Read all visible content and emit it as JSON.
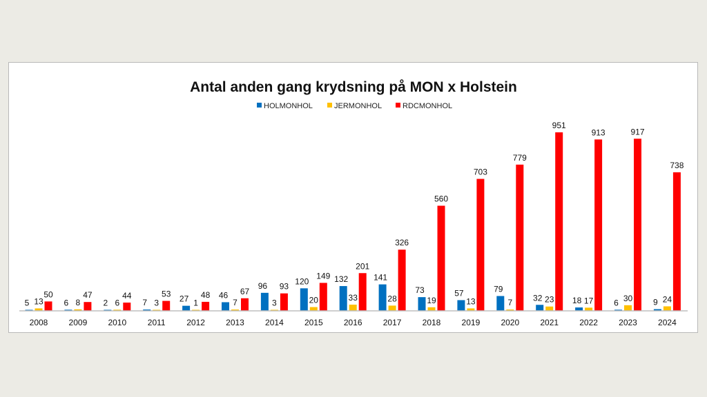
{
  "chart_data": {
    "type": "bar",
    "title": "Antal anden gang krydsning på MON x Holstein",
    "xlabel": "",
    "ylabel": "",
    "ylim": [
      0,
      951
    ],
    "grid": false,
    "legend_position": "top",
    "categories": [
      "2008",
      "2009",
      "2010",
      "2011",
      "2012",
      "2013",
      "2014",
      "2015",
      "2016",
      "2017",
      "2018",
      "2019",
      "2020",
      "2021",
      "2022",
      "2023",
      "2024"
    ],
    "series": [
      {
        "name": "HOLMONHOL",
        "color": "#0070c0",
        "values": [
          5,
          6,
          2,
          7,
          27,
          46,
          96,
          120,
          132,
          141,
          73,
          57,
          79,
          32,
          18,
          6,
          9
        ]
      },
      {
        "name": "JERMONHOL",
        "color": "#ffc000",
        "values": [
          13,
          8,
          6,
          3,
          1,
          7,
          3,
          20,
          33,
          28,
          19,
          13,
          7,
          23,
          17,
          30,
          24
        ]
      },
      {
        "name": "RDCMONHOL",
        "color": "#ff0000",
        "values": [
          50,
          47,
          44,
          53,
          48,
          67,
          93,
          149,
          201,
          326,
          560,
          703,
          779,
          951,
          913,
          917,
          738
        ]
      }
    ],
    "data_labels": true
  }
}
